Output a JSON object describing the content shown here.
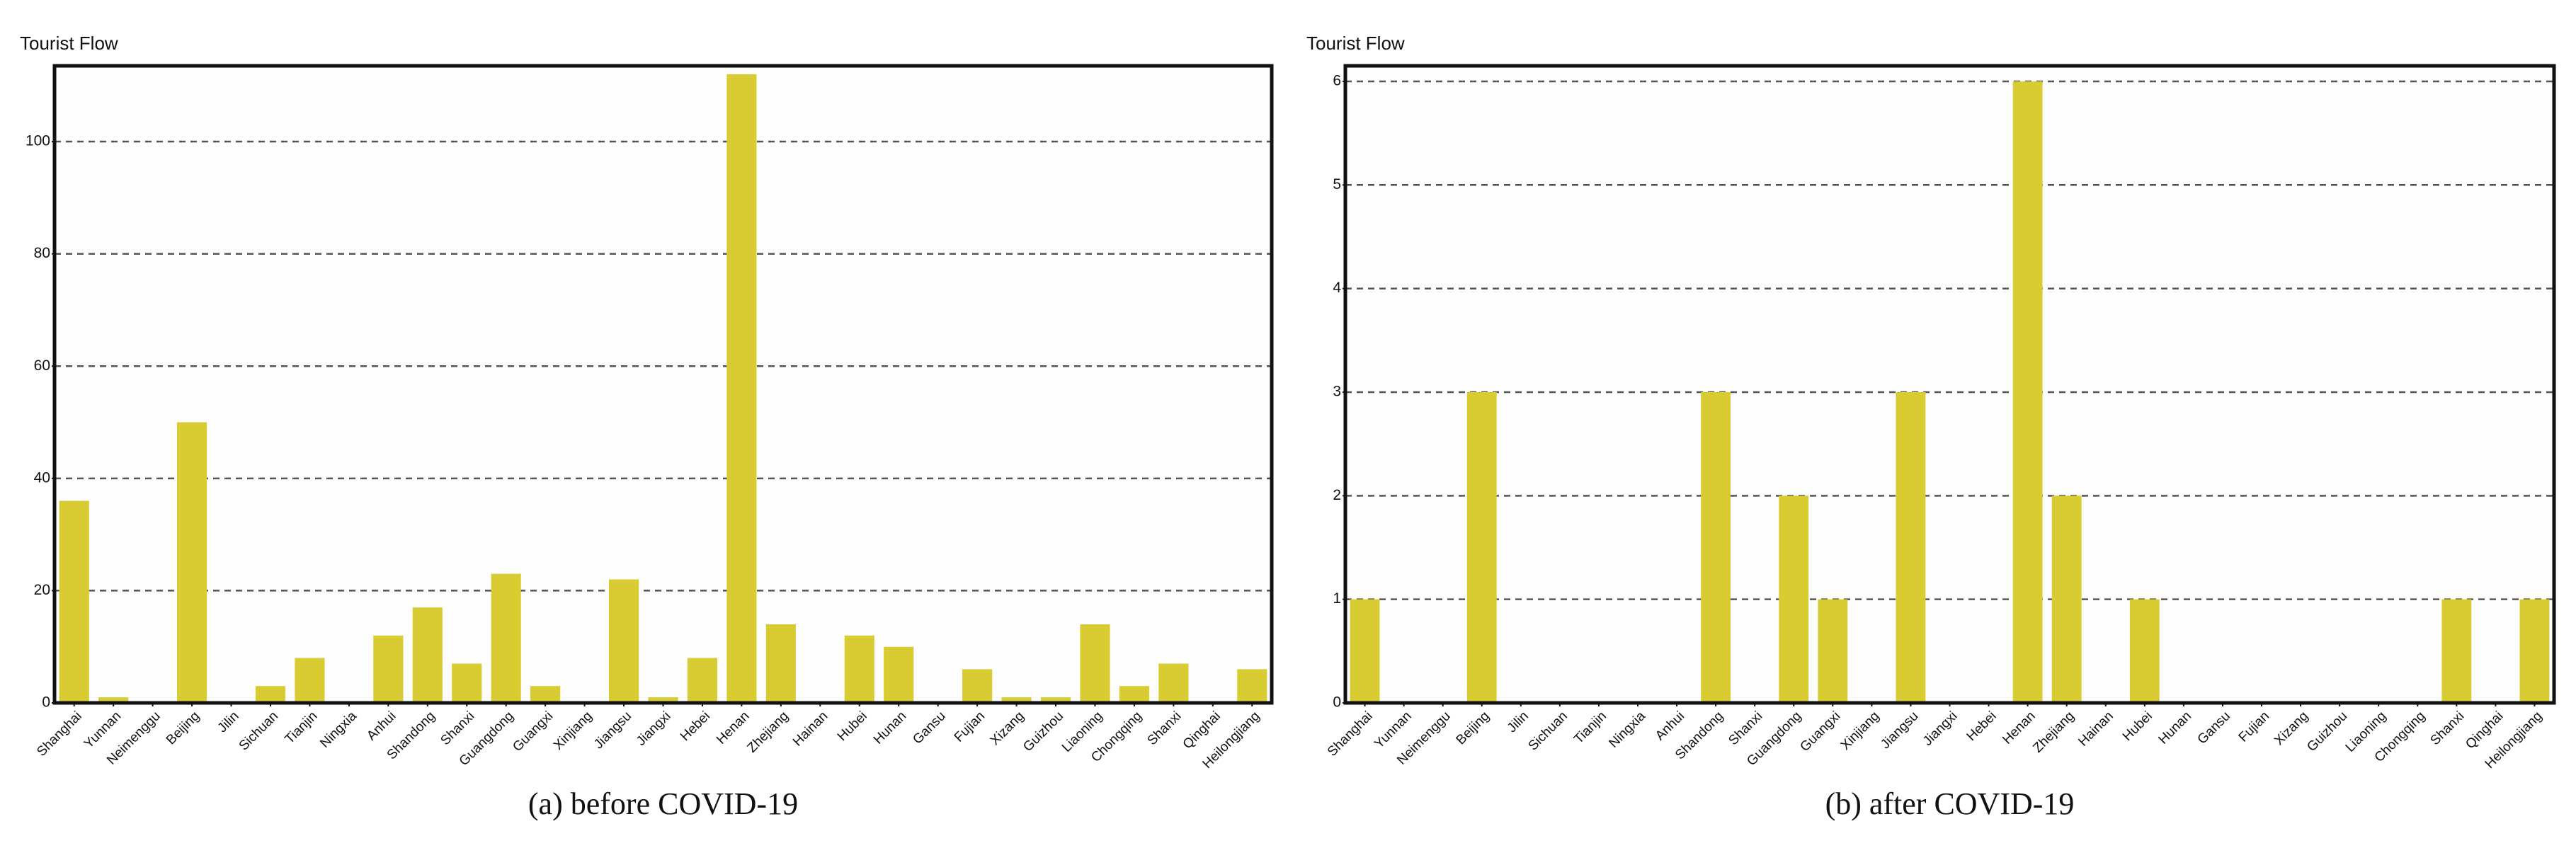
{
  "chart_data": [
    {
      "type": "bar",
      "title": "(a) before COVID-19",
      "ylabel": "Tourist Flow",
      "color": "#d9cc33",
      "grid": true,
      "categories": [
        "Shanghai",
        "Yunnan",
        "Neimenggu",
        "Beijing",
        "Jilin",
        "Sichuan",
        "Tianjin",
        "Ningxia",
        "Anhui",
        "Shandong",
        "Shanxi",
        "Guangdong",
        "Guangxi",
        "Xinjiang",
        "Jiangsu",
        "Jiangxi",
        "Hebei",
        "Henan",
        "Zhejiang",
        "Hainan",
        "Hubei",
        "Hunan",
        "Gansu",
        "Fujian",
        "Xizang",
        "Guizhou",
        "Liaoning",
        "Chongqing",
        "Shanxi",
        "Qinghai",
        "Heilongjiang"
      ],
      "values": [
        36,
        1,
        0,
        50,
        0,
        3,
        8,
        0,
        12,
        17,
        7,
        23,
        3,
        0,
        22,
        1,
        8,
        112,
        14,
        0,
        12,
        10,
        0,
        6,
        1,
        1,
        14,
        3,
        7,
        0,
        6
      ],
      "ylim": [
        0,
        113.5
      ],
      "yticks": [
        0,
        20,
        40,
        60,
        80,
        100
      ]
    },
    {
      "type": "bar",
      "title": "(b) after COVID-19",
      "ylabel": "Tourist Flow",
      "color": "#d9cc33",
      "grid": true,
      "categories": [
        "Shanghai",
        "Yunnan",
        "Neimenggu",
        "Beijing",
        "Jilin",
        "Sichuan",
        "Tianjin",
        "Ningxia",
        "Anhui",
        "Shandong",
        "Shanxi",
        "Guangdong",
        "Guangxi",
        "Xinjiang",
        "Jiangsu",
        "Jiangxi",
        "Hebei",
        "Henan",
        "Zhejiang",
        "Hainan",
        "Hubei",
        "Hunan",
        "Gansu",
        "Fujian",
        "Xizang",
        "Guizhou",
        "Liaoning",
        "Chongqing",
        "Shanxi",
        "Qinghai",
        "Heilongjiang"
      ],
      "values": [
        1,
        0,
        0,
        3,
        0,
        0,
        0,
        0,
        0,
        3,
        0,
        2,
        1,
        0,
        3,
        0,
        0,
        6,
        2,
        0,
        1,
        0,
        0,
        0,
        0,
        0,
        0,
        0,
        1,
        0,
        1
      ],
      "ylim": [
        0,
        6.15
      ],
      "yticks": [
        0,
        1,
        2,
        3,
        4,
        5,
        6
      ]
    }
  ]
}
